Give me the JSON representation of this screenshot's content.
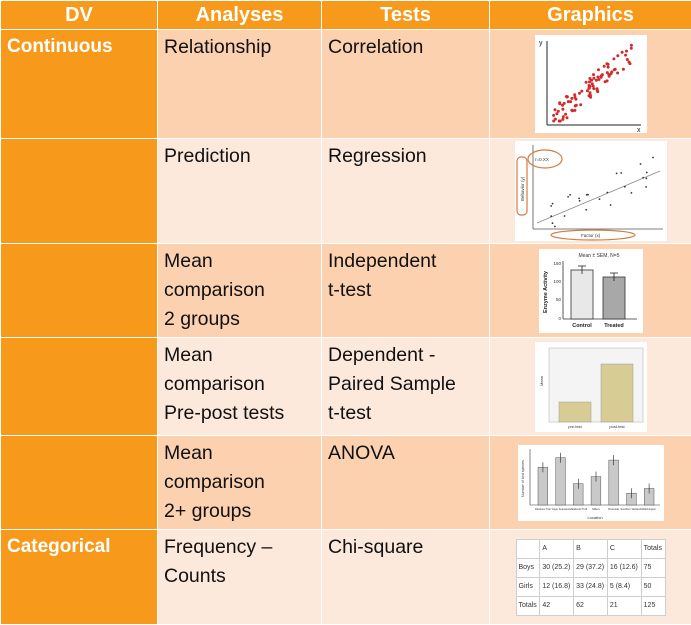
{
  "headers": {
    "dv": "DV",
    "analyses": "Analyses",
    "tests": "Tests",
    "graphics": "Graphics"
  },
  "rows": [
    {
      "dv": "Continuous",
      "analysis": "Relationship",
      "test": "Correlation"
    },
    {
      "dv": "",
      "analysis": "Prediction",
      "test": "Regression"
    },
    {
      "dv": "",
      "analysis": "Mean\ncomparison\n2 groups",
      "test": "Independent\nt-test"
    },
    {
      "dv": "",
      "analysis": "Mean\ncomparison\nPre-post tests",
      "test": "Dependent -\nPaired Sample\nt-test"
    },
    {
      "dv": "",
      "analysis": "Mean\ncomparison\n2+ groups",
      "test": "ANOVA"
    },
    {
      "dv": "Categorical",
      "analysis": "Frequency –\nCounts",
      "test": "Chi-square"
    }
  ],
  "graphics": {
    "scatter": {
      "y_axis": "y",
      "x_axis": "x"
    },
    "regression": {
      "annotation": "r=0.XX",
      "ylabel": "Behavior (y)",
      "xlabel": "Factor (x)"
    },
    "ttest": {
      "title": "Mean ± SEM, N=5",
      "ylabel": "Enzyme Activity",
      "bars": [
        "Control",
        "Treated"
      ],
      "values": [
        135,
        115
      ],
      "ticks": [
        "150",
        "100",
        "50",
        "0"
      ]
    },
    "paired": {
      "ylabel": "Mean",
      "bars": [
        "pre-test",
        "post-test"
      ],
      "values": [
        0.35,
        0.95
      ]
    },
    "anova": {
      "ylabel": "Number of bird species",
      "xlabel": "Location",
      "bars": [
        "Rainbow Trail",
        "Cape Fearwest",
        "Maddocks Trail",
        "Millers",
        "Riverside",
        "Southern Wetlands",
        "Washington"
      ],
      "values": [
        1.6,
        2.0,
        0.9,
        1.2,
        1.9,
        0.5,
        0.7
      ]
    },
    "chisquare": {
      "columns": [
        "",
        "A",
        "B",
        "C",
        "Totals"
      ],
      "rows": [
        [
          "Boys",
          "30 (25.2)",
          "29 (37.2)",
          "16 (12.6)",
          "75"
        ],
        [
          "Girls",
          "12 (16.8)",
          "33 (24.8)",
          "5 (8.4)",
          "50"
        ],
        [
          "Totals",
          "42",
          "62",
          "21",
          "125"
        ]
      ]
    }
  }
}
